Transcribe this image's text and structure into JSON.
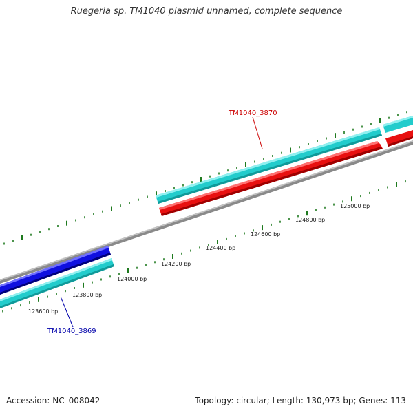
{
  "title": "Ruegeria sp. TM1040 plasmid unnamed, complete sequence",
  "footer": {
    "accession": "Accession: NC_008042",
    "summary": "Topology: circular; Length: 130,973 bp; Genes: 113"
  },
  "colors": {
    "backbone": "#8a8a8a",
    "tick": "#1f7a1f",
    "cds_forward": "#e81010",
    "gene_forward": "#22cccc",
    "gene_reverse_cds": "#1010e0",
    "label_forward": "#cc0000",
    "label_reverse": "#0000aa"
  },
  "map": {
    "bp_range": [
      123000,
      125400
    ],
    "ruler_labels": [
      {
        "bp": 123600,
        "text": "123600 bp"
      },
      {
        "bp": 123800,
        "text": "123800 bp"
      },
      {
        "bp": 124000,
        "text": "124000 bp"
      },
      {
        "bp": 124200,
        "text": "124200 bp"
      },
      {
        "bp": 124400,
        "text": "124400 bp"
      },
      {
        "bp": 124600,
        "text": "124600 bp"
      },
      {
        "bp": 124800,
        "text": "124800 bp"
      },
      {
        "bp": 125000,
        "text": "125000 bp"
      }
    ],
    "features": [
      {
        "id": "TM1040_3870",
        "label": "TM1040_3870",
        "strand": "forward",
        "start": 124100,
        "end": 125400
      },
      {
        "id": "TM1040_3869",
        "label": "TM1040_3869",
        "strand": "reverse",
        "start": 123000,
        "end": 123650
      }
    ]
  }
}
